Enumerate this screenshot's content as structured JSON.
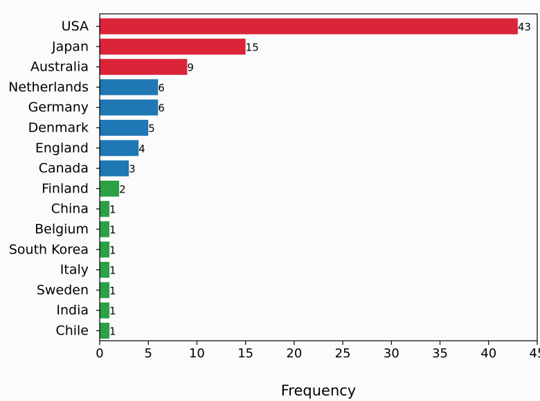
{
  "chart_data": {
    "type": "bar",
    "orientation": "horizontal",
    "title": "",
    "xlabel": "Frequency",
    "ylabel": "",
    "xlim": [
      0,
      45
    ],
    "x_ticks": [
      0,
      5,
      10,
      15,
      20,
      25,
      30,
      35,
      40,
      45
    ],
    "grid": false,
    "legend": "none",
    "categories": [
      "USA",
      "Japan",
      "Australia",
      "Netherlands",
      "Germany",
      "Denmark",
      "England",
      "Canada",
      "Finland",
      "China",
      "Belgium",
      "South Korea",
      "Italy",
      "Sweden",
      "India",
      "Chile"
    ],
    "values": [
      43,
      15,
      9,
      6,
      6,
      5,
      4,
      3,
      2,
      1,
      1,
      1,
      1,
      1,
      1,
      1
    ],
    "bar_colors": [
      "#dc2438",
      "#dc2438",
      "#dc2438",
      "#1f77b4",
      "#1f77b4",
      "#1f77b4",
      "#1f77b4",
      "#1f77b4",
      "#2ca044",
      "#2ca044",
      "#2ca044",
      "#2ca044",
      "#2ca044",
      "#2ca044",
      "#2ca044",
      "#2ca044"
    ]
  }
}
